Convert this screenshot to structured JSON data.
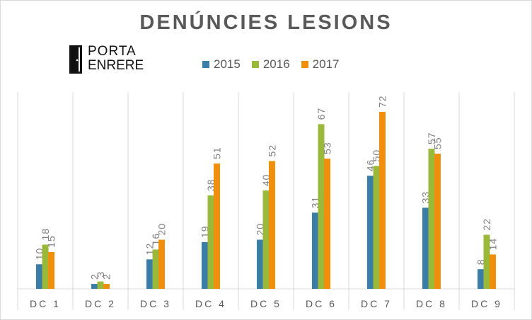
{
  "chart_data": {
    "type": "bar",
    "title": "DENÚNCIES  LESIONS",
    "categories": [
      "DC 1",
      "DC 2",
      "DC 3",
      "DC 4",
      "DC 5",
      "DC 6",
      "DC 7",
      "DC 8",
      "DC 9"
    ],
    "series": [
      {
        "name": "2015",
        "color": "#3a7ea8",
        "values": [
          10,
          2,
          12,
          19,
          20,
          31,
          46,
          33,
          8
        ]
      },
      {
        "name": "2016",
        "color": "#9ab83a",
        "values": [
          18,
          3,
          16,
          38,
          40,
          67,
          50,
          57,
          22
        ]
      },
      {
        "name": "2017",
        "color": "#f08f0c",
        "values": [
          15,
          2,
          20,
          51,
          52,
          53,
          72,
          55,
          14
        ]
      }
    ],
    "ylim": [
      0,
      72
    ],
    "grid": "vertical category separators",
    "legend_position": "top-center",
    "data_labels": "rotated, above bars"
  },
  "logo": {
    "line1": "PORTA",
    "line2": "ENRERE"
  }
}
